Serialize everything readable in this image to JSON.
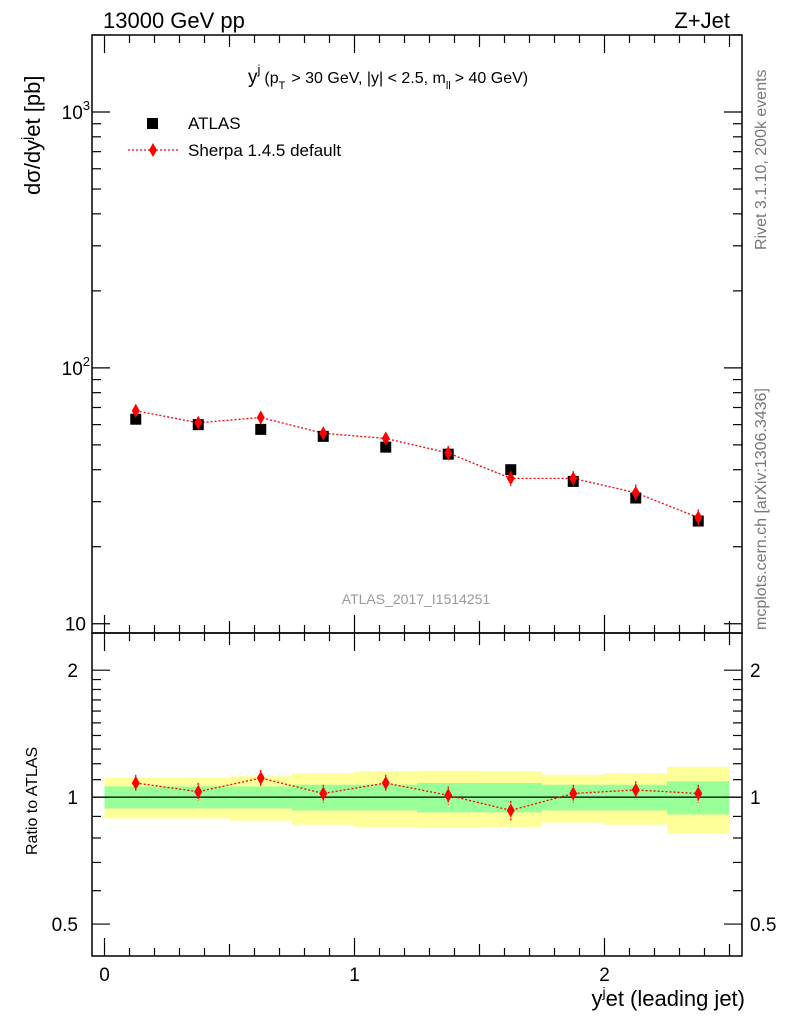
{
  "header": {
    "left": "13000 GeV pp",
    "right": "Z+Jet"
  },
  "side_labels": {
    "rivet": "Rivet 3.1.10,  200k events",
    "mcplots": "mcplots.cern.ch [arXiv:1306.3436]"
  },
  "chart_data": [
    {
      "type": "scatter",
      "title_main": "y",
      "title_sup": "j",
      "title_detail_1": "(p",
      "title_detail_sub_1": "T",
      "title_detail_2": "> 30 GeV, |y| < 2.5, m",
      "title_detail_sub_2": "ll",
      "title_detail_3": "> 40 GeV)",
      "ylabel": "dσ/dy^jet [pb]",
      "ylabel_parts": [
        "dσ/dy",
        "j",
        "et [pb]"
      ],
      "yscale": "log",
      "ylim": [
        9.2,
        2000
      ],
      "xlim": [
        -0.05,
        2.55
      ],
      "ytick_labels": [
        {
          "base": "10",
          "exp": ""
        },
        {
          "base": "10",
          "exp": "2"
        },
        {
          "base": "10",
          "exp": "3"
        }
      ],
      "watermark": "ATLAS_2017_I1514251",
      "legend": {
        "position": "top-left",
        "entries": [
          "ATLAS",
          "Sherpa 1.4.5 default"
        ]
      },
      "x": [
        0.125,
        0.375,
        0.625,
        0.875,
        1.125,
        1.375,
        1.625,
        1.875,
        2.125,
        2.375
      ],
      "bin_edges": [
        0,
        0.25,
        0.5,
        0.75,
        1.0,
        1.25,
        1.5,
        1.75,
        2.0,
        2.25,
        2.5
      ],
      "series": [
        {
          "name": "ATLAS",
          "color": "#000000",
          "marker": "square",
          "values": [
            63,
            60,
            57.5,
            54,
            49,
            46,
            40,
            36,
            31,
            25.2
          ]
        },
        {
          "name": "Sherpa 1.4.5 default",
          "color": "#ff0000",
          "marker": "diamond",
          "line": "dotted",
          "values": [
            68,
            61,
            64,
            55.5,
            53,
            46.5,
            37,
            37,
            32.5,
            26
          ],
          "err_up": [
            3.5,
            3.0,
            3.5,
            3.0,
            3.0,
            3.0,
            2.5,
            2.5,
            2.5,
            2.0
          ],
          "err_down": [
            3.5,
            3.0,
            3.5,
            3.0,
            3.0,
            3.0,
            2.5,
            2.5,
            2.5,
            2.0
          ]
        }
      ]
    },
    {
      "type": "scatter",
      "ylabel": "Ratio to ATLAS",
      "xlabel_parts": [
        "y",
        "j",
        "et (leading jet)"
      ],
      "xlim": [
        -0.05,
        2.55
      ],
      "ylim": [
        0.42,
        2.45
      ],
      "yscale": "log",
      "ytick_labels": [
        "0.5",
        "1",
        "2"
      ],
      "xtick_labels": [
        "0",
        "1",
        "2"
      ],
      "bands": {
        "colors": {
          "inner": "#99ff99",
          "outer": "#ffff99"
        },
        "bin_edges": [
          0,
          0.25,
          0.5,
          0.75,
          1.0,
          1.25,
          1.5,
          1.75,
          2.0,
          2.25,
          2.5
        ],
        "inner_low": [
          0.94,
          0.94,
          0.94,
          0.93,
          0.93,
          0.92,
          0.92,
          0.93,
          0.93,
          0.91,
          0.91
        ],
        "inner_high": [
          1.06,
          1.06,
          1.06,
          1.07,
          1.07,
          1.08,
          1.08,
          1.07,
          1.07,
          1.09,
          1.09
        ],
        "outer_low": [
          0.89,
          0.89,
          0.88,
          0.86,
          0.85,
          0.845,
          0.85,
          0.87,
          0.86,
          0.82,
          0.82
        ],
        "outer_high": [
          1.11,
          1.11,
          1.12,
          1.14,
          1.15,
          1.155,
          1.15,
          1.13,
          1.14,
          1.18,
          1.18
        ]
      },
      "series": [
        {
          "name": "Sherpa 1.4.5 default",
          "color": "#ff0000",
          "values": [
            1.08,
            1.03,
            1.11,
            1.02,
            1.08,
            1.01,
            0.93,
            1.02,
            1.04,
            1.02
          ],
          "err": [
            0.05,
            0.05,
            0.05,
            0.05,
            0.05,
            0.05,
            0.05,
            0.05,
            0.05,
            0.05
          ]
        }
      ]
    }
  ]
}
